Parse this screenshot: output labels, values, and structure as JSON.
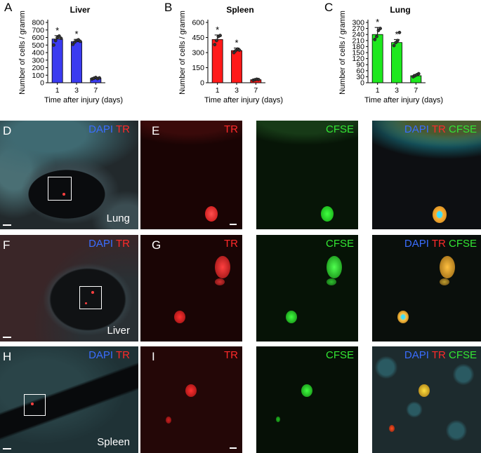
{
  "panels_abc": {
    "letters": [
      "A",
      "B",
      "C"
    ],
    "xlabel": "Time after injury (days)",
    "ylabel": "Number of cells / gramm",
    "star": "*"
  },
  "chart_data": [
    {
      "type": "bar",
      "title": "Liver",
      "categories": [
        "1",
        "3",
        "7"
      ],
      "values": [
        580,
        545,
        60
      ],
      "error": [
        45,
        30,
        10
      ],
      "points": [
        [
          500,
          560,
          600,
          620,
          590
        ],
        [
          510,
          540,
          560,
          570,
          550
        ],
        [
          50,
          60,
          70,
          55,
          65
        ]
      ],
      "significant": [
        true,
        true,
        false
      ],
      "ylim": [
        0,
        800
      ],
      "yticks": [
        0,
        100,
        200,
        300,
        400,
        500,
        600,
        700,
        800
      ],
      "color": "#3b3bf0",
      "xlabel": "Time after injury (days)",
      "ylabel": "Number of cells / gramm"
    },
    {
      "type": "bar",
      "title": "Spleen",
      "categories": [
        "1",
        "3",
        "7"
      ],
      "values": [
        430,
        320,
        30
      ],
      "error": [
        45,
        25,
        8
      ],
      "points": [
        [
          380,
          420,
          460,
          470
        ],
        [
          300,
          320,
          335,
          325
        ],
        [
          25,
          30,
          35,
          32
        ]
      ],
      "significant": [
        true,
        true,
        false
      ],
      "ylim": [
        0,
        600
      ],
      "yticks": [
        0,
        150,
        300,
        450,
        600
      ],
      "color": "#ff1a1a",
      "xlabel": "Time after injury (days)",
      "ylabel": "Number of cells / gramm"
    },
    {
      "type": "bar",
      "title": "Lung",
      "categories": [
        "1",
        "3",
        "7"
      ],
      "values": [
        240,
        200,
        35
      ],
      "error": [
        35,
        15,
        6
      ],
      "points": [
        [
          215,
          230,
          260,
          270
        ],
        [
          185,
          200,
          210,
          250
        ],
        [
          30,
          35,
          40,
          45
        ]
      ],
      "significant": [
        true,
        true,
        false
      ],
      "ylim": [
        0,
        300
      ],
      "yticks": [
        0,
        30,
        60,
        90,
        120,
        150,
        180,
        210,
        240,
        270,
        300
      ],
      "color": "#1fe81f",
      "xlabel": "Time after injury (days)",
      "ylabel": "Number of cells / gramm"
    }
  ],
  "micrographs": {
    "rows": [
      {
        "overview": {
          "letter": "D",
          "dapi": "DAPI",
          "tr": "TR",
          "tissue": "Lung"
        },
        "zoom": {
          "letter": "E",
          "tr": "TR",
          "cfse": "CFSE",
          "dapi": "DAPI",
          "tr2": "TR",
          "cfse2": "CFSE"
        }
      },
      {
        "overview": {
          "letter": "F",
          "dapi": "DAPI",
          "tr": "TR",
          "tissue": "Liver"
        },
        "zoom": {
          "letter": "G",
          "tr": "TR",
          "cfse": "CFSE",
          "dapi": "DAPI",
          "tr2": "TR",
          "cfse2": "CFSE"
        }
      },
      {
        "overview": {
          "letter": "H",
          "dapi": "DAPI",
          "tr": "TR",
          "tissue": "Spleen"
        },
        "zoom": {
          "letter": "I",
          "tr": "TR",
          "cfse": "CFSE",
          "dapi": "DAPI",
          "tr2": "TR",
          "cfse2": "CFSE"
        }
      }
    ]
  }
}
